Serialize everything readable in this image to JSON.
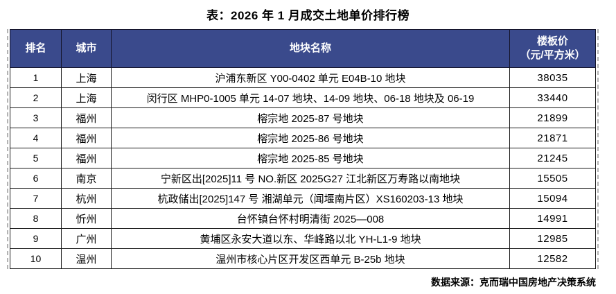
{
  "title": "表：2026 年 1 月成交土地单价排行榜",
  "source_note": "数据来源：克而瑞中国房地产决策系统",
  "colors": {
    "header_bg": "#3a4a8c",
    "header_text": "#ffffff",
    "grid_border": "#1a1a1a",
    "dashed_guide": "#b3b3b3"
  },
  "table": {
    "columns": [
      {
        "key": "rank",
        "label": "排名"
      },
      {
        "key": "city",
        "label": "城市"
      },
      {
        "key": "name",
        "label": "地块名称"
      },
      {
        "key": "price",
        "label": "楼板价",
        "label_line2": "（元/平方米）"
      }
    ],
    "rows": [
      {
        "rank": "1",
        "city": "上海",
        "name": "沪浦东新区 Y00-0402 单元 E04B-10 地块",
        "price": "38035"
      },
      {
        "rank": "2",
        "city": "上海",
        "name": "闵行区 MHP0-1005 单元 14-07 地块、14-09 地块、06-18 地块及 06-19",
        "price": "33440"
      },
      {
        "rank": "3",
        "city": "福州",
        "name": "榕宗地 2025-87 号地块",
        "price": "21899"
      },
      {
        "rank": "4",
        "city": "福州",
        "name": "榕宗地 2025-86 号地块",
        "price": "21871"
      },
      {
        "rank": "5",
        "city": "福州",
        "name": "榕宗地 2025-85 号地块",
        "price": "21245"
      },
      {
        "rank": "6",
        "city": "南京",
        "name": "宁新区出[2025]11 号 NO.新区 2025G27 江北新区万寿路以南地块",
        "price": "15505"
      },
      {
        "rank": "7",
        "city": "杭州",
        "name": "杭政储出[2025]147 号 湘湖单元（闻堰南片区）XS160203-13 地块",
        "price": "15094"
      },
      {
        "rank": "8",
        "city": "忻州",
        "name": "台怀镇台怀村明清街 2025—008",
        "price": "14991"
      },
      {
        "rank": "9",
        "city": "广州",
        "name": "黄埔区永安大道以东、华峰路以北 YH-L1-9 地块",
        "price": "12985"
      },
      {
        "rank": "10",
        "city": "温州",
        "name": "温州市核心片区开发区西单元 B-25b 地块",
        "price": "12582"
      }
    ]
  },
  "chart_data": {
    "type": "table",
    "title": "表：2026 年 1 月成交土地单价排行榜",
    "columns": [
      "排名",
      "城市",
      "地块名称",
      "楼板价（元/平方米）"
    ],
    "rows": [
      [
        1,
        "上海",
        "沪浦东新区 Y00-0402 单元 E04B-10 地块",
        38035
      ],
      [
        2,
        "上海",
        "闵行区 MHP0-1005 单元 14-07 地块、14-09 地块、06-18 地块及 06-19",
        33440
      ],
      [
        3,
        "福州",
        "榕宗地 2025-87 号地块",
        21899
      ],
      [
        4,
        "福州",
        "榕宗地 2025-86 号地块",
        21871
      ],
      [
        5,
        "福州",
        "榕宗地 2025-85 号地块",
        21245
      ],
      [
        6,
        "南京",
        "宁新区出[2025]11 号 NO.新区 2025G27 江北新区万寿路以南地块",
        15505
      ],
      [
        7,
        "杭州",
        "杭政储出[2025]147 号 湘湖单元（闻堰南片区）XS160203-13 地块",
        15094
      ],
      [
        8,
        "忻州",
        "台怀镇台怀村明清街 2025—008",
        14991
      ],
      [
        9,
        "广州",
        "黄埔区永安大道以东、华峰路以北 YH-L1-9 地块",
        12985
      ],
      [
        10,
        "温州",
        "温州市核心片区开发区西单元 B-25b 地块",
        12582
      ]
    ],
    "source": "数据来源：克而瑞中国房地产决策系统"
  }
}
